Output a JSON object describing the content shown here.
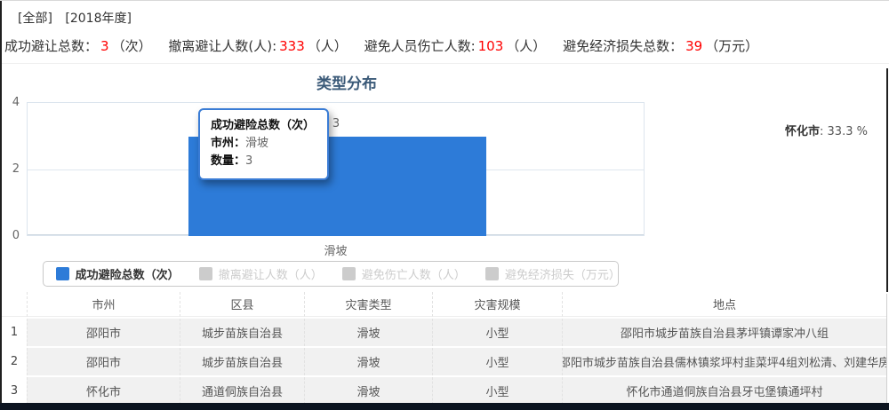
{
  "header": {
    "filter_scope": "[全部]",
    "filter_year": "[2018年度]"
  },
  "stats": [
    {
      "label": "成功避让总数：",
      "value": "3",
      "unit": "（次）"
    },
    {
      "label": "撤离避让人数(人):",
      "value": "333",
      "unit": "（人）"
    },
    {
      "label": "避免人员伤亡人数:",
      "value": "103",
      "unit": "（人）"
    },
    {
      "label": "避免经济损失总数：",
      "value": "39",
      "unit": "（万元）"
    }
  ],
  "colors": {
    "stat_value_red": "#ff0000",
    "bar_blue": "#2d7bd8",
    "inactive_gray": "#cccccc",
    "title_blue": "#3b5a78",
    "bottom_strip": "#0c1420"
  },
  "chart": {
    "title": "类型分布",
    "y_tick_top": "4",
    "y_tick_mid": "2",
    "y_tick_bottom": "0",
    "bar_value_label": "3",
    "x_label": "滑坡",
    "tooltip": {
      "title": "成功避险总数（次）",
      "row1_label": "市州：",
      "row1_value": "滑坡",
      "row2_label": "数量：",
      "row2_value": "3"
    },
    "pie_fragment": {
      "name": "怀化市",
      "value": ": 33.3 %"
    }
  },
  "legend": [
    {
      "label": "成功避险总数（次）"
    },
    {
      "label": "撤离避让人数（人）"
    },
    {
      "label": "避免伤亡人数（人）"
    },
    {
      "label": "避免经济损失（万元）"
    }
  ],
  "table": {
    "headers": [
      "",
      "市州",
      "区县",
      "灾害类型",
      "灾害规模",
      "地点"
    ],
    "rows": [
      [
        "1",
        "邵阳市",
        "城步苗族自治县",
        "滑坡",
        "小型",
        "邵阳市城步苗族自治县茅坪镇谭家冲八组"
      ],
      [
        "2",
        "邵阳市",
        "城步苗族自治县",
        "滑坡",
        "小型",
        "邵阳市城步苗族自治县儒林镇浆坪村韭菜坪4组刘松清、刘建华房"
      ],
      [
        "3",
        "怀化市",
        "通道侗族自治县",
        "滑坡",
        "小型",
        "怀化市通道侗族自治县牙屯堡镇通坪村"
      ]
    ]
  },
  "chart_data": [
    {
      "type": "bar",
      "title": "类型分布",
      "categories": [
        "滑坡"
      ],
      "series": [
        {
          "name": "成功避险总数（次）",
          "values": [
            3
          ],
          "active": true
        },
        {
          "name": "撤离避让人数（人）",
          "values": [],
          "active": false
        },
        {
          "name": "避免伤亡人数（人）",
          "values": [],
          "active": false
        },
        {
          "name": "避免经济损失（万元）",
          "values": [],
          "active": false
        }
      ],
      "xlabel": "",
      "ylabel": "",
      "ylim": [
        0,
        4
      ],
      "yticks": [
        0,
        2,
        4
      ],
      "grid": true,
      "legend_position": "bottom",
      "data_labels": [
        3
      ],
      "tooltip_shown": {
        "series": "成功避险总数（次）",
        "category": "滑坡",
        "value": 3
      }
    },
    {
      "type": "pie",
      "note": "mostly cropped off right edge; only one label visible",
      "visible_labels": [
        {
          "name": "怀化市",
          "percent": 33.3
        }
      ]
    }
  ]
}
